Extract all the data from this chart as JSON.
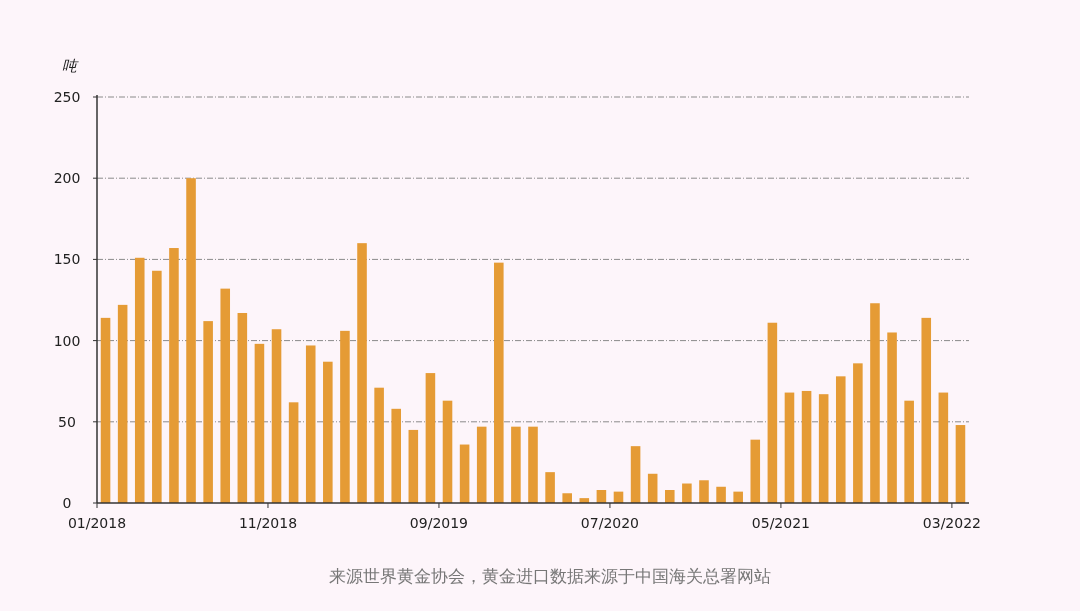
{
  "chart_data": {
    "type": "bar",
    "ylabel": "吨",
    "categories": [
      "01/2018",
      null,
      null,
      null,
      null,
      null,
      null,
      null,
      null,
      null,
      "11/2018",
      null,
      null,
      null,
      null,
      null,
      null,
      null,
      null,
      null,
      "09/2019",
      null,
      null,
      null,
      null,
      null,
      null,
      null,
      null,
      null,
      "07/2020",
      null,
      null,
      null,
      null,
      null,
      null,
      null,
      null,
      null,
      "05/2021",
      null,
      null,
      null,
      null,
      null,
      null,
      null,
      null,
      null,
      "03/2022"
    ],
    "values": [
      114,
      122,
      151,
      143,
      157,
      200,
      112,
      132,
      117,
      98,
      107,
      62,
      97,
      87,
      106,
      160,
      71,
      58,
      45,
      80,
      63,
      36,
      47,
      148,
      47,
      47,
      19,
      6,
      3,
      8,
      7,
      35,
      18,
      8,
      12,
      14,
      10,
      7,
      39,
      111,
      68,
      69,
      67,
      78,
      86,
      123,
      105,
      63,
      114,
      68,
      48
    ],
    "color": "#e59b35",
    "ylim": [
      0,
      250
    ],
    "yticks": [
      0,
      50,
      100,
      150,
      200,
      250
    ],
    "grid": "y",
    "annotations": [
      "来源世界黄金协会，黄金进口数据来源于中国海关总署网站"
    ]
  }
}
